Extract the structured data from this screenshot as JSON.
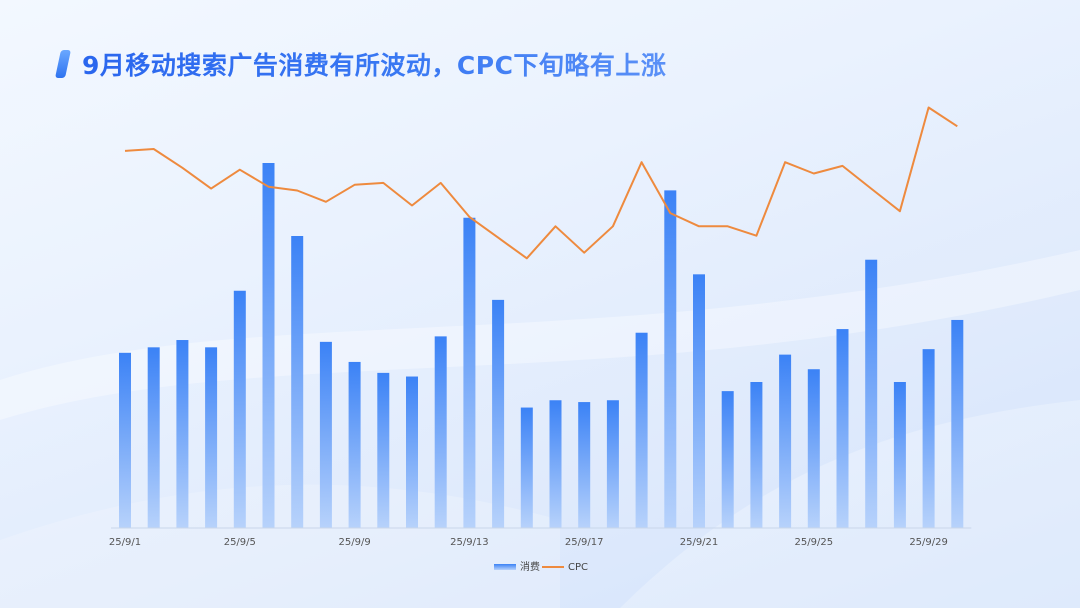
{
  "title": "9月移动搜索广告消费有所波动，CPC下旬略有上涨",
  "colors": {
    "bar_top": "#3b82f6",
    "bar_bottom": "#a9c8fb",
    "line": "#ee8a3e",
    "axis": "#c9d6ea"
  },
  "chart_data": {
    "type": "bar",
    "categories": [
      "25/9/1",
      "25/9/2",
      "25/9/3",
      "25/9/4",
      "25/9/5",
      "25/9/6",
      "25/9/7",
      "25/9/8",
      "25/9/9",
      "25/9/10",
      "25/9/11",
      "25/9/12",
      "25/9/13",
      "25/9/14",
      "25/9/15",
      "25/9/16",
      "25/9/17",
      "25/9/18",
      "25/9/19",
      "25/9/20",
      "25/9/21",
      "25/9/22",
      "25/9/23",
      "25/9/24",
      "25/9/25",
      "25/9/26",
      "25/9/27",
      "25/9/28",
      "25/9/29",
      "25/9/30"
    ],
    "tick_labels": [
      "25/9/1",
      "25/9/5",
      "25/9/9",
      "25/9/13",
      "25/9/17",
      "25/9/21",
      "25/9/25",
      "25/9/29"
    ],
    "series": [
      {
        "name": "消费",
        "type": "bar",
        "values": [
          48,
          49.5,
          51.5,
          49.5,
          65,
          100,
          80,
          51,
          45.5,
          42.5,
          41.5,
          52.5,
          85,
          62.5,
          33,
          35,
          34.5,
          35,
          53.5,
          92.5,
          69.5,
          37.5,
          40,
          47.5,
          43.5,
          54.5,
          73.5,
          40,
          49,
          57
        ]
      },
      {
        "name": "CPC",
        "type": "line",
        "values": [
          100,
          100.5,
          95.5,
          90,
          95,
          90.5,
          89.5,
          86.5,
          91,
          91.5,
          85.5,
          91.5,
          82.5,
          77,
          71.5,
          80,
          73,
          80,
          97,
          83.5,
          80,
          80,
          77.5,
          97,
          94,
          96,
          90,
          84,
          111.5,
          106.5
        ]
      }
    ],
    "bar_ylim": [
      0,
      100
    ],
    "line_ylim": [
      0,
      140
    ],
    "legend": "bottom-center",
    "grid": false
  }
}
